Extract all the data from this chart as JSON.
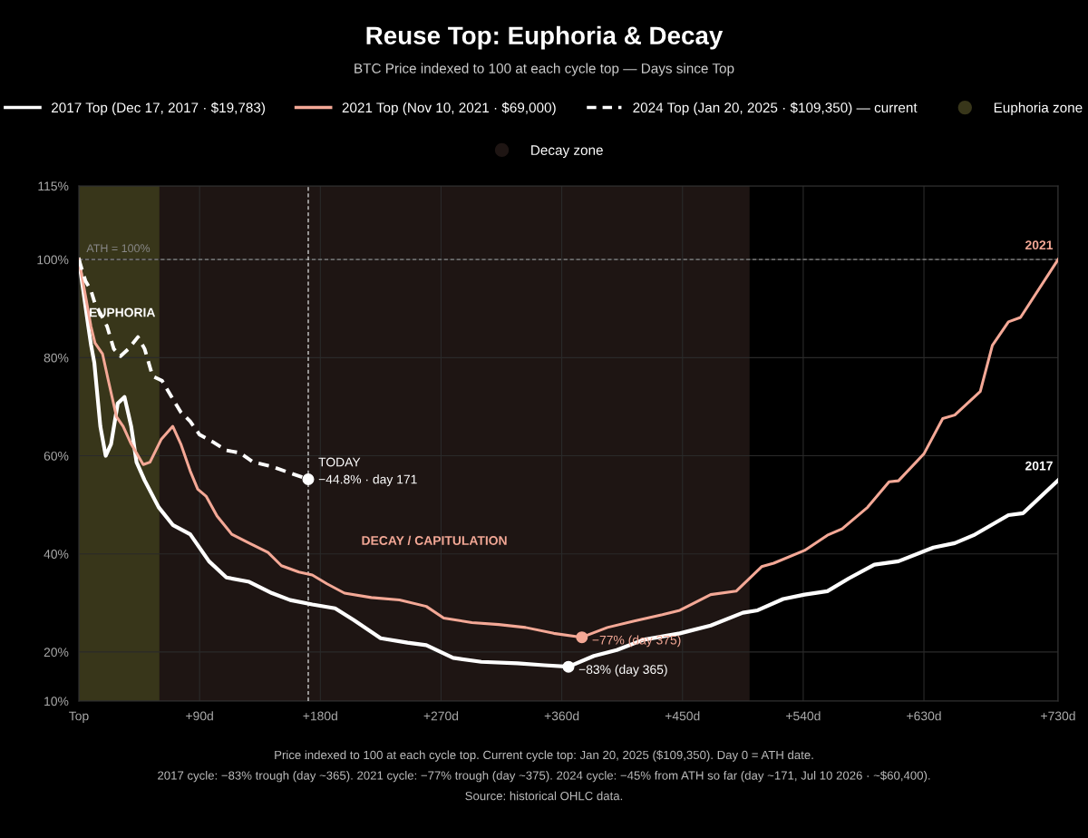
{
  "chart_data": {
    "type": "line",
    "title": "Reuse Top: Euphoria & Decay",
    "subtitle": "BTC Price indexed to 100 at each cycle top — Days since Top",
    "xlim": [
      0,
      730
    ],
    "ylim": [
      10,
      115
    ],
    "xticks": [
      {
        "value": 0,
        "label": "Top"
      },
      {
        "value": 90,
        "label": "+90d"
      },
      {
        "value": 180,
        "label": "+180d"
      },
      {
        "value": 270,
        "label": "+270d"
      },
      {
        "value": 360,
        "label": "+360d"
      },
      {
        "value": 450,
        "label": "+450d"
      },
      {
        "value": 540,
        "label": "+540d"
      },
      {
        "value": 630,
        "label": "+630d"
      },
      {
        "value": 730,
        "label": "+730d"
      }
    ],
    "yticks": [
      {
        "value": 10,
        "label": "10%"
      },
      {
        "value": 20,
        "label": "20%"
      },
      {
        "value": 40,
        "label": "40%"
      },
      {
        "value": 60,
        "label": "60%"
      },
      {
        "value": 80,
        "label": "80%"
      },
      {
        "value": 100,
        "label": "100%"
      },
      {
        "value": 115,
        "label": "115%"
      }
    ],
    "grid": true,
    "legend": "top",
    "series": [
      {
        "name": "2017 Top (Dec 17, 2017 · $19,783)",
        "color": "#ffffff",
        "line_style": "solid",
        "x": [
          0,
          7,
          9,
          11.5,
          16,
          20,
          24,
          29,
          34,
          39,
          43,
          49,
          59.5,
          70,
          83,
          97,
          110,
          127,
          144,
          157.5,
          174,
          191,
          205,
          225,
          245,
          259,
          279,
          300,
          327,
          347,
          365,
          384,
          401,
          421,
          448,
          471,
          495,
          506,
          525,
          541,
          558,
          574,
          593,
          611,
          637,
          653,
          667,
          693,
          704,
          730
        ],
        "values": [
          100,
          86.4,
          82.7,
          79,
          66,
          60,
          62.4,
          70.7,
          72,
          66,
          58.7,
          55,
          49.5,
          45.9,
          44,
          38.5,
          35.2,
          34.3,
          32,
          30.6,
          29.7,
          28.9,
          26.5,
          22.8,
          21.9,
          21.4,
          18.8,
          18,
          17.7,
          17.3,
          17,
          19.2,
          20.4,
          22.5,
          23.8,
          25.4,
          28,
          28.5,
          30.8,
          31.7,
          32.4,
          35,
          37.8,
          38.5,
          41.3,
          42.2,
          43.8,
          47.9,
          48.3,
          55
        ]
      },
      {
        "name": "2021 Top (Nov 10, 2021 · $69,000)",
        "color": "#f4a896",
        "line_style": "solid",
        "x": [
          0,
          5.4,
          9,
          12,
          17.6,
          22,
          28,
          33,
          39,
          48,
          53,
          61.5,
          70,
          76,
          83,
          88.6,
          95,
          103,
          114,
          127,
          141,
          151,
          164,
          174,
          185,
          198,
          218,
          239,
          259,
          272,
          293,
          313,
          333,
          354,
          375,
          394,
          414,
          435,
          448,
          471,
          490,
          509,
          518,
          541,
          558,
          569,
          588,
          604,
          611,
          630,
          644,
          653,
          672,
          681,
          693,
          702,
          730
        ],
        "values": [
          100,
          91.9,
          86.4,
          83,
          80.8,
          75.3,
          68,
          66,
          62.4,
          58.2,
          58.7,
          63.4,
          66,
          62.4,
          56.9,
          53.2,
          51.7,
          47.7,
          44,
          42.2,
          40.3,
          37.6,
          36.3,
          35.7,
          33.9,
          32,
          31.1,
          30.6,
          29.3,
          26.9,
          26,
          25.6,
          25,
          23.8,
          23,
          25,
          26.3,
          27.6,
          28.5,
          31.7,
          32.4,
          37.4,
          38.1,
          40.7,
          43.8,
          45.1,
          49.5,
          54.7,
          54.9,
          60.4,
          67.6,
          68.3,
          73.1,
          82.5,
          87.3,
          88.2,
          100
        ]
      },
      {
        "name": "2024 Top (Jan 20, 2025 · $109,350) — current",
        "color": "#ffffff",
        "line_style": "dashed",
        "x": [
          0,
          5,
          9,
          12,
          16,
          21,
          26,
          31,
          37,
          44,
          49,
          55,
          62,
          70,
          76,
          83,
          90,
          100,
          110,
          120,
          130,
          144,
          157.5,
          171
        ],
        "values": [
          100,
          95.6,
          93.7,
          91,
          89,
          86.4,
          81.8,
          80.3,
          81.8,
          84.2,
          81.8,
          76.2,
          75.3,
          71.6,
          68.9,
          67,
          64.3,
          62.8,
          61.1,
          60.6,
          58.7,
          57.8,
          56.5,
          55.2
        ]
      },
      {
        "type": "scatter",
        "marker": "circle",
        "x": [
          171,
          365,
          375
        ],
        "values": [
          55.2,
          17,
          23
        ],
        "colors": [
          "#ffffff",
          "#ffffff",
          "#f4a896"
        ]
      }
    ],
    "ref_lines": [
      {
        "axis": "y",
        "value": 100,
        "label": "ATH = 100%",
        "color": "#888888",
        "line_style": "dashed"
      },
      {
        "axis": "x",
        "value": 171,
        "label": null,
        "color": "#cccccc",
        "line_style": "dashed"
      }
    ],
    "bands": [
      {
        "axis": "x",
        "from": 0,
        "to": 60,
        "label": "Euphoria zone",
        "color": "#38361a"
      },
      {
        "axis": "x",
        "from": 30,
        "to": 500,
        "label": "Decay zone",
        "color": "#1e1513"
      }
    ],
    "annotations": [
      "DECAY / CAPITULATION",
      {
        "text": "EUPHORIA",
        "x": 0,
        "y": 89
      },
      {
        "text": "TODAY\n−44.8% · day 171",
        "x": 171,
        "y": 55.2
      },
      {
        "text": "−83% (day 365)",
        "x": 365,
        "y": 17
      },
      {
        "text": "−77% (day 375)",
        "x": 375,
        "y": 23
      },
      {
        "text": "2017",
        "x": 730,
        "y": 55
      },
      {
        "text": "2021",
        "x": 730,
        "y": 100
      },
      "Price indexed to 100 at each cycle top. Current cycle top: Jan 20, 2025 ($109,350). Day 0 = ATH date.",
      "2017 cycle: −83% trough (day ~365). 2021 cycle: −77% trough (day ~375). 2024 cycle: −45% from ATH so far (day ~171, Jul 10 2026 · ~$60,400).",
      "Source: historical OHLC data."
    ]
  }
}
